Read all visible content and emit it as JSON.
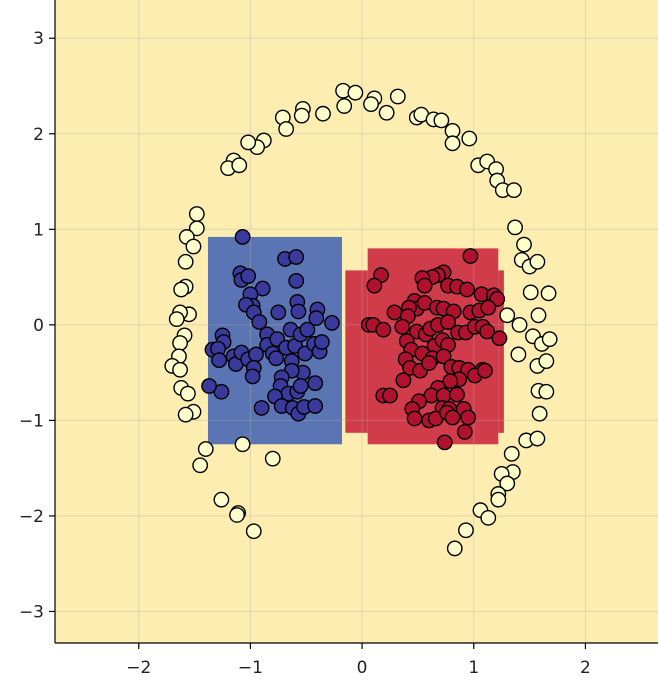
{
  "chart_data": {
    "type": "scatter",
    "title": "",
    "xlabel": "",
    "ylabel": "",
    "xlim": [
      -2.75,
      2.65
    ],
    "ylim": [
      -3.33,
      3.4
    ],
    "xticks": [
      -2,
      -1,
      0,
      1,
      2
    ],
    "yticks": [
      -3,
      -2,
      -1,
      0,
      1,
      2,
      3
    ],
    "xtick_labels": [
      "−2",
      "−1",
      "0",
      "1",
      "2"
    ],
    "ytick_labels": [
      "−3",
      "−2",
      "−1",
      "0",
      "1",
      "2",
      "3"
    ],
    "grid": true,
    "legend": "none",
    "colors": {
      "background_region": "#fdedb0",
      "blue_region": "#5b74b3",
      "red_region": "#d03c4a",
      "blue_points": "#3a3a9c",
      "red_points": "#b0122e",
      "outer_points": "#ffffcc"
    },
    "regions": [
      {
        "class": "blue",
        "x": [
          -1.38,
          -0.18
        ],
        "y": [
          -1.25,
          0.92
        ]
      },
      {
        "class": "red",
        "x": [
          -0.15,
          0.05
        ],
        "y": [
          -1.13,
          0.57
        ]
      },
      {
        "class": "red",
        "x": [
          0.05,
          1.22
        ],
        "y": [
          -1.25,
          0.8
        ]
      },
      {
        "class": "red",
        "x": [
          1.22,
          1.27
        ],
        "y": [
          -1.13,
          0.57
        ]
      }
    ],
    "series": [
      {
        "class": "outer",
        "points": [
          [
            -0.17,
            2.45
          ],
          [
            -0.06,
            2.43
          ],
          [
            0.11,
            2.37
          ],
          [
            0.32,
            2.39
          ],
          [
            -0.53,
            2.26
          ],
          [
            -0.54,
            2.19
          ],
          [
            -0.35,
            2.21
          ],
          [
            -0.16,
            2.29
          ],
          [
            0.08,
            2.31
          ],
          [
            0.22,
            2.22
          ],
          [
            0.49,
            2.17
          ],
          [
            0.53,
            2.2
          ],
          [
            0.64,
            2.15
          ],
          [
            0.71,
            2.14
          ],
          [
            0.81,
            2.03
          ],
          [
            0.81,
            1.9
          ],
          [
            0.96,
            1.95
          ],
          [
            -0.71,
            2.17
          ],
          [
            -0.68,
            2.05
          ],
          [
            -0.88,
            1.93
          ],
          [
            -0.94,
            1.86
          ],
          [
            -1.02,
            1.91
          ],
          [
            -1.15,
            1.72
          ],
          [
            -1.2,
            1.64
          ],
          [
            -1.1,
            1.67
          ],
          [
            1.04,
            1.67
          ],
          [
            1.12,
            1.71
          ],
          [
            1.2,
            1.63
          ],
          [
            1.21,
            1.51
          ],
          [
            1.26,
            1.41
          ],
          [
            1.36,
            1.41
          ],
          [
            1.37,
            1.02
          ],
          [
            1.45,
            0.84
          ],
          [
            1.43,
            0.68
          ],
          [
            1.5,
            0.61
          ],
          [
            1.57,
            0.66
          ],
          [
            1.51,
            0.34
          ],
          [
            1.67,
            0.33
          ],
          [
            1.58,
            0.1
          ],
          [
            1.3,
            0.1
          ],
          [
            1.41,
            0.0
          ],
          [
            1.53,
            -0.12
          ],
          [
            1.61,
            -0.2
          ],
          [
            1.68,
            -0.15
          ],
          [
            1.4,
            -0.31
          ],
          [
            1.57,
            -0.43
          ],
          [
            1.65,
            -0.38
          ],
          [
            1.58,
            -0.69
          ],
          [
            1.65,
            -0.7
          ],
          [
            1.59,
            -0.93
          ],
          [
            1.47,
            -1.21
          ],
          [
            1.57,
            -1.19
          ],
          [
            1.34,
            -1.35
          ],
          [
            1.35,
            -1.54
          ],
          [
            1.25,
            -1.56
          ],
          [
            1.3,
            -1.66
          ],
          [
            1.22,
            -1.77
          ],
          [
            1.22,
            -1.83
          ],
          [
            1.06,
            -1.94
          ],
          [
            1.13,
            -2.02
          ],
          [
            0.93,
            -2.15
          ],
          [
            0.83,
            -2.34
          ],
          [
            -1.48,
            1.01
          ],
          [
            -1.48,
            1.16
          ],
          [
            -1.57,
            0.92
          ],
          [
            -1.51,
            0.82
          ],
          [
            -1.58,
            0.66
          ],
          [
            -1.58,
            0.4
          ],
          [
            -1.62,
            0.37
          ],
          [
            -1.55,
            0.11
          ],
          [
            -1.63,
            0.13
          ],
          [
            -1.66,
            0.06
          ],
          [
            -1.59,
            -0.11
          ],
          [
            -1.63,
            -0.19
          ],
          [
            -1.64,
            -0.33
          ],
          [
            -1.7,
            -0.43
          ],
          [
            -1.63,
            -0.47
          ],
          [
            -1.62,
            -0.66
          ],
          [
            -1.56,
            -0.72
          ],
          [
            -1.51,
            -0.91
          ],
          [
            -1.58,
            -0.94
          ],
          [
            -1.4,
            -1.3
          ],
          [
            -1.45,
            -1.47
          ],
          [
            -1.26,
            -1.83
          ],
          [
            -1.11,
            -1.97
          ],
          [
            -1.12,
            -1.99
          ],
          [
            -0.97,
            -2.16
          ],
          [
            -1.07,
            -1.25
          ],
          [
            -0.8,
            -1.4
          ]
        ]
      },
      {
        "class": "blue",
        "points": [
          [
            -1.07,
            0.92
          ],
          [
            -1.09,
            0.54
          ],
          [
            -1.08,
            0.47
          ],
          [
            -1.02,
            0.51
          ],
          [
            -0.69,
            0.69
          ],
          [
            -0.59,
            0.71
          ],
          [
            -0.59,
            0.46
          ],
          [
            -0.89,
            0.38
          ],
          [
            -1.0,
            0.32
          ],
          [
            -0.98,
            0.2
          ],
          [
            -1.04,
            0.21
          ],
          [
            -0.97,
            0.13
          ],
          [
            -0.92,
            0.03
          ],
          [
            -0.75,
            0.13
          ],
          [
            -0.58,
            0.24
          ],
          [
            -0.57,
            0.14
          ],
          [
            -0.4,
            0.16
          ],
          [
            -0.41,
            0.07
          ],
          [
            -0.27,
            0.02
          ],
          [
            -1.25,
            -0.11
          ],
          [
            -1.24,
            -0.18
          ],
          [
            -1.34,
            -0.26
          ],
          [
            -1.29,
            -0.25
          ],
          [
            -1.28,
            -0.37
          ],
          [
            -1.15,
            -0.33
          ],
          [
            -1.13,
            -0.41
          ],
          [
            -1.08,
            -0.29
          ],
          [
            -1.02,
            -0.36
          ],
          [
            -0.95,
            -0.31
          ],
          [
            -0.97,
            -0.45
          ],
          [
            -0.98,
            -0.54
          ],
          [
            -0.85,
            -0.1
          ],
          [
            -0.85,
            -0.21
          ],
          [
            -0.8,
            -0.3
          ],
          [
            -0.76,
            -0.15
          ],
          [
            -0.77,
            -0.35
          ],
          [
            -0.64,
            -0.05
          ],
          [
            -0.68,
            -0.24
          ],
          [
            -0.63,
            -0.38
          ],
          [
            -0.6,
            -0.22
          ],
          [
            -0.55,
            -0.1
          ],
          [
            -0.53,
            -0.5
          ],
          [
            -0.51,
            -0.3
          ],
          [
            -0.49,
            -0.05
          ],
          [
            -0.43,
            -0.2
          ],
          [
            -0.38,
            -0.28
          ],
          [
            -0.36,
            -0.18
          ],
          [
            -0.63,
            -0.48
          ],
          [
            -0.72,
            -0.55
          ],
          [
            -0.73,
            -0.64
          ],
          [
            -0.66,
            -0.72
          ],
          [
            -0.58,
            -0.7
          ],
          [
            -0.55,
            -0.64
          ],
          [
            -0.42,
            -0.61
          ],
          [
            -0.78,
            -0.75
          ],
          [
            -0.72,
            -0.85
          ],
          [
            -0.62,
            -0.87
          ],
          [
            -0.57,
            -0.93
          ],
          [
            -0.52,
            -0.86
          ],
          [
            -0.42,
            -0.85
          ],
          [
            -0.9,
            -0.87
          ],
          [
            -1.26,
            -0.7
          ],
          [
            -1.37,
            -0.64
          ]
        ]
      },
      {
        "class": "red",
        "points": [
          [
            0.97,
            0.72
          ],
          [
            0.73,
            0.55
          ],
          [
            0.68,
            0.52
          ],
          [
            0.63,
            0.5
          ],
          [
            0.54,
            0.49
          ],
          [
            0.17,
            0.52
          ],
          [
            0.11,
            0.41
          ],
          [
            0.56,
            0.41
          ],
          [
            0.77,
            0.41
          ],
          [
            0.85,
            0.4
          ],
          [
            0.94,
            0.37
          ],
          [
            1.07,
            0.32
          ],
          [
            1.18,
            0.31
          ],
          [
            1.21,
            0.27
          ],
          [
            0.47,
            0.25
          ],
          [
            0.49,
            0.17
          ],
          [
            0.42,
            0.18
          ],
          [
            0.56,
            0.23
          ],
          [
            0.67,
            0.18
          ],
          [
            0.73,
            0.17
          ],
          [
            0.82,
            0.14
          ],
          [
            0.97,
            0.13
          ],
          [
            1.05,
            0.15
          ],
          [
            1.13,
            0.18
          ],
          [
            0.06,
            0.0
          ],
          [
            0.1,
            0.0
          ],
          [
            0.19,
            -0.05
          ],
          [
            0.29,
            0.13
          ],
          [
            0.41,
            0.09
          ],
          [
            0.36,
            -0.02
          ],
          [
            0.49,
            -0.07
          ],
          [
            0.57,
            -0.1
          ],
          [
            0.61,
            -0.04
          ],
          [
            0.68,
            0.0
          ],
          [
            0.77,
            0.03
          ],
          [
            0.86,
            -0.08
          ],
          [
            0.93,
            -0.08
          ],
          [
            1.01,
            -0.02
          ],
          [
            1.08,
            -0.02
          ],
          [
            1.12,
            -0.07
          ],
          [
            1.23,
            -0.14
          ],
          [
            0.4,
            -0.17
          ],
          [
            0.44,
            -0.26
          ],
          [
            0.54,
            -0.3
          ],
          [
            0.65,
            -0.22
          ],
          [
            0.72,
            -0.16
          ],
          [
            0.77,
            -0.21
          ],
          [
            0.63,
            -0.35
          ],
          [
            0.39,
            -0.36
          ],
          [
            0.43,
            -0.45
          ],
          [
            0.52,
            -0.48
          ],
          [
            0.6,
            -0.4
          ],
          [
            0.73,
            -0.33
          ],
          [
            0.8,
            -0.44
          ],
          [
            0.87,
            -0.45
          ],
          [
            0.95,
            -0.47
          ],
          [
            1.08,
            -0.47
          ],
          [
            1.01,
            -0.53
          ],
          [
            1.1,
            -0.48
          ],
          [
            0.87,
            -0.57
          ],
          [
            0.79,
            -0.59
          ],
          [
            0.68,
            -0.66
          ],
          [
            0.37,
            -0.58
          ],
          [
            0.62,
            -0.74
          ],
          [
            0.73,
            -0.74
          ],
          [
            0.85,
            -0.73
          ],
          [
            0.51,
            -0.8
          ],
          [
            0.45,
            -0.88
          ],
          [
            0.72,
            -0.87
          ],
          [
            0.78,
            -0.88
          ],
          [
            0.91,
            -0.88
          ],
          [
            0.95,
            -0.97
          ],
          [
            0.47,
            -0.98
          ],
          [
            0.6,
            -1.0
          ],
          [
            0.66,
            -0.98
          ],
          [
            0.76,
            -0.92
          ],
          [
            0.81,
            -0.97
          ],
          [
            0.92,
            -1.12
          ],
          [
            0.19,
            -0.74
          ],
          [
            0.25,
            -0.74
          ],
          [
            0.74,
            -1.23
          ]
        ]
      }
    ]
  }
}
